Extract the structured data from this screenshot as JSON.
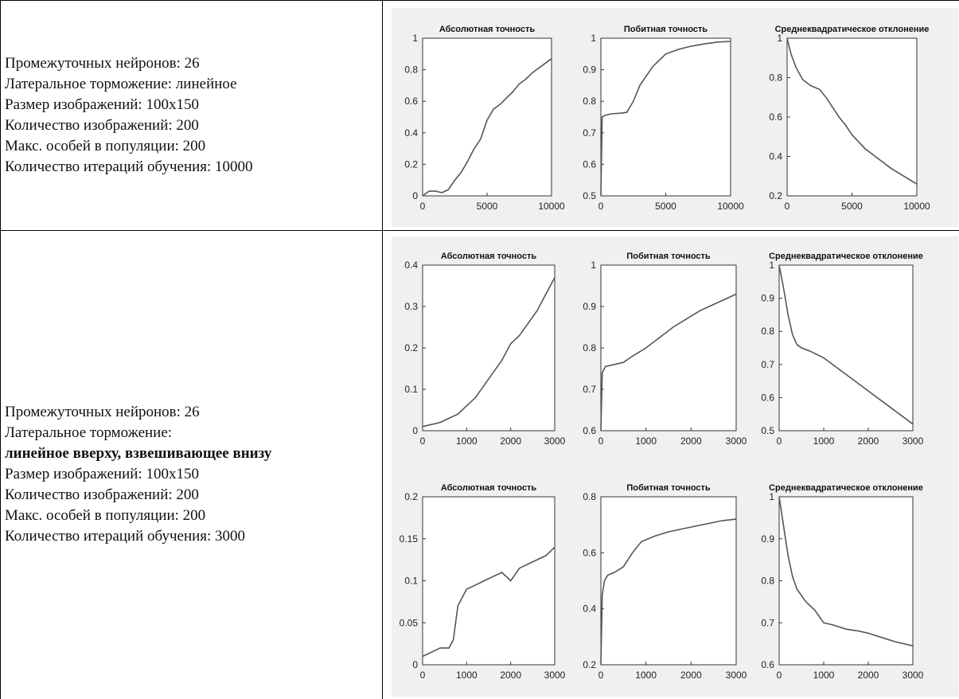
{
  "rows": [
    {
      "lines": [
        {
          "text": "Промежуточных нейронов: 26",
          "bold": false
        },
        {
          "text": "Латеральное торможение: линейное",
          "bold": false
        },
        {
          "text": "Размер изображений: 100х150",
          "bold": false
        },
        {
          "text": "Количество изображений: 200",
          "bold": false
        },
        {
          "text": "Макс. особей в популяции: 200",
          "bold": false
        },
        {
          "text": "Количество итераций обучения: 10000",
          "bold": false
        }
      ]
    },
    {
      "lines": [
        {
          "text": "Промежуточных нейронов: 26",
          "bold": false
        },
        {
          "text": "Латеральное торможение:",
          "bold": false
        },
        {
          "text": "линейное вверху, взвешивающее внизу",
          "bold": true
        },
        {
          "text": "Размер изображений: 100х150",
          "bold": false
        },
        {
          "text": "Количество изображений: 200",
          "bold": false
        },
        {
          "text": "Макс. особей в популяции: 200",
          "bold": false
        },
        {
          "text": "Количество итераций обучения: 3000",
          "bold": false
        }
      ]
    }
  ],
  "chart_data": [
    {
      "type": "line",
      "title": "Абсолютная точность",
      "xlim": [
        0,
        10000
      ],
      "ylim": [
        0,
        1
      ],
      "xticks": [
        "0",
        "5000",
        "10000"
      ],
      "yticks": [
        "0",
        "0.2",
        "0.4",
        "0.6",
        "0.8",
        "1"
      ],
      "x": [
        0,
        500,
        1000,
        1500,
        2000,
        2500,
        3000,
        3500,
        4000,
        4500,
        5000,
        5500,
        6000,
        6500,
        7000,
        7500,
        8000,
        8500,
        9000,
        9500,
        10000
      ],
      "y": [
        0.0,
        0.03,
        0.03,
        0.02,
        0.04,
        0.1,
        0.15,
        0.22,
        0.3,
        0.36,
        0.48,
        0.55,
        0.58,
        0.62,
        0.66,
        0.71,
        0.74,
        0.78,
        0.81,
        0.84,
        0.87
      ]
    },
    {
      "type": "line",
      "title": "Побитная точность",
      "xlim": [
        0,
        10000
      ],
      "ylim": [
        0.5,
        1
      ],
      "xticks": [
        "0",
        "5000",
        "10000"
      ],
      "yticks": [
        "0.5",
        "0.6",
        "0.7",
        "0.8",
        "0.9",
        "1"
      ],
      "x": [
        0,
        100,
        300,
        800,
        1500,
        2000,
        2500,
        3000,
        3500,
        4000,
        4500,
        5000,
        6000,
        7000,
        8000,
        9000,
        10000
      ],
      "y": [
        0.5,
        0.75,
        0.755,
        0.76,
        0.762,
        0.765,
        0.8,
        0.85,
        0.88,
        0.91,
        0.93,
        0.95,
        0.965,
        0.975,
        0.982,
        0.988,
        0.99
      ]
    },
    {
      "type": "line",
      "title": "Среднеквадратическое отклонение",
      "xlim": [
        0,
        10000
      ],
      "ylim": [
        0.2,
        1
      ],
      "xticks": [
        "0",
        "5000",
        "10000"
      ],
      "yticks": [
        "0.2",
        "0.4",
        "0.6",
        "0.8",
        "1"
      ],
      "x": [
        0,
        300,
        700,
        1200,
        1800,
        2500,
        3000,
        3500,
        4000,
        4500,
        5000,
        6000,
        7000,
        8000,
        9000,
        10000
      ],
      "y": [
        1.0,
        0.92,
        0.85,
        0.79,
        0.76,
        0.74,
        0.7,
        0.65,
        0.6,
        0.56,
        0.51,
        0.44,
        0.39,
        0.34,
        0.3,
        0.26
      ]
    },
    {
      "type": "line",
      "title": "Абсолютная точность",
      "xlim": [
        0,
        3000
      ],
      "ylim": [
        0,
        0.4
      ],
      "xticks": [
        "0",
        "1000",
        "2000",
        "3000"
      ],
      "yticks": [
        "0",
        "0.1",
        "0.2",
        "0.3",
        "0.4"
      ],
      "x": [
        0,
        200,
        400,
        600,
        800,
        1000,
        1200,
        1400,
        1600,
        1800,
        2000,
        2200,
        2400,
        2600,
        2800,
        3000
      ],
      "y": [
        0.01,
        0.015,
        0.02,
        0.03,
        0.04,
        0.06,
        0.08,
        0.11,
        0.14,
        0.17,
        0.21,
        0.23,
        0.26,
        0.29,
        0.33,
        0.37
      ]
    },
    {
      "type": "line",
      "title": "Побитная точность",
      "xlim": [
        0,
        3000
      ],
      "ylim": [
        0.6,
        1
      ],
      "xticks": [
        "0",
        "1000",
        "2000",
        "3000"
      ],
      "yticks": [
        "0.6",
        "0.7",
        "0.8",
        "0.9",
        "1"
      ],
      "x": [
        0,
        30,
        100,
        300,
        500,
        700,
        1000,
        1300,
        1600,
        1900,
        2200,
        2500,
        2800,
        3000
      ],
      "y": [
        0.6,
        0.74,
        0.755,
        0.76,
        0.765,
        0.78,
        0.8,
        0.825,
        0.85,
        0.87,
        0.89,
        0.905,
        0.92,
        0.93
      ]
    },
    {
      "type": "line",
      "title": "Среднеквадратическое отклонение",
      "xlim": [
        0,
        3000
      ],
      "ylim": [
        0.5,
        1
      ],
      "xticks": [
        "0",
        "1000",
        "2000",
        "3000"
      ],
      "yticks": [
        "0.5",
        "0.6",
        "0.7",
        "0.8",
        "0.9",
        "1"
      ],
      "x": [
        0,
        100,
        200,
        300,
        400,
        500,
        700,
        1000,
        1300,
        1600,
        2000,
        2400,
        2700,
        3000
      ],
      "y": [
        1.0,
        0.93,
        0.85,
        0.79,
        0.76,
        0.75,
        0.74,
        0.72,
        0.69,
        0.66,
        0.62,
        0.58,
        0.55,
        0.52
      ]
    },
    {
      "type": "line",
      "title": "Абсолютная точность",
      "xlim": [
        0,
        3000
      ],
      "ylim": [
        0,
        0.2
      ],
      "xticks": [
        "0",
        "1000",
        "2000",
        "3000"
      ],
      "yticks": [
        "0",
        "0.05",
        "0.1",
        "0.15",
        "0.2"
      ],
      "x": [
        0,
        200,
        400,
        600,
        700,
        800,
        1000,
        1200,
        1400,
        1600,
        1800,
        2000,
        2200,
        2400,
        2600,
        2800,
        3000
      ],
      "y": [
        0.01,
        0.015,
        0.02,
        0.02,
        0.03,
        0.07,
        0.09,
        0.095,
        0.1,
        0.105,
        0.11,
        0.1,
        0.115,
        0.12,
        0.125,
        0.13,
        0.14
      ]
    },
    {
      "type": "line",
      "title": "Побитная точность",
      "xlim": [
        0,
        3000
      ],
      "ylim": [
        0.2,
        0.8
      ],
      "xticks": [
        "0",
        "1000",
        "2000",
        "3000"
      ],
      "yticks": [
        "0.2",
        "0.4",
        "0.6",
        "0.8"
      ],
      "x": [
        0,
        30,
        80,
        150,
        300,
        500,
        700,
        900,
        1200,
        1500,
        1800,
        2100,
        2400,
        2700,
        3000
      ],
      "y": [
        0.2,
        0.45,
        0.5,
        0.52,
        0.53,
        0.55,
        0.6,
        0.64,
        0.66,
        0.675,
        0.685,
        0.695,
        0.705,
        0.715,
        0.72
      ]
    },
    {
      "type": "line",
      "title": "Среднеквадратическое отклонение",
      "xlim": [
        0,
        3000
      ],
      "ylim": [
        0.6,
        1
      ],
      "xticks": [
        "0",
        "1000",
        "2000",
        "3000"
      ],
      "yticks": [
        "0.6",
        "0.7",
        "0.8",
        "0.9",
        "1"
      ],
      "x": [
        0,
        100,
        200,
        300,
        400,
        600,
        800,
        1000,
        1200,
        1500,
        1800,
        2000,
        2300,
        2600,
        3000
      ],
      "y": [
        1.0,
        0.93,
        0.86,
        0.81,
        0.78,
        0.75,
        0.73,
        0.7,
        0.695,
        0.685,
        0.68,
        0.675,
        0.665,
        0.655,
        0.645
      ]
    }
  ]
}
